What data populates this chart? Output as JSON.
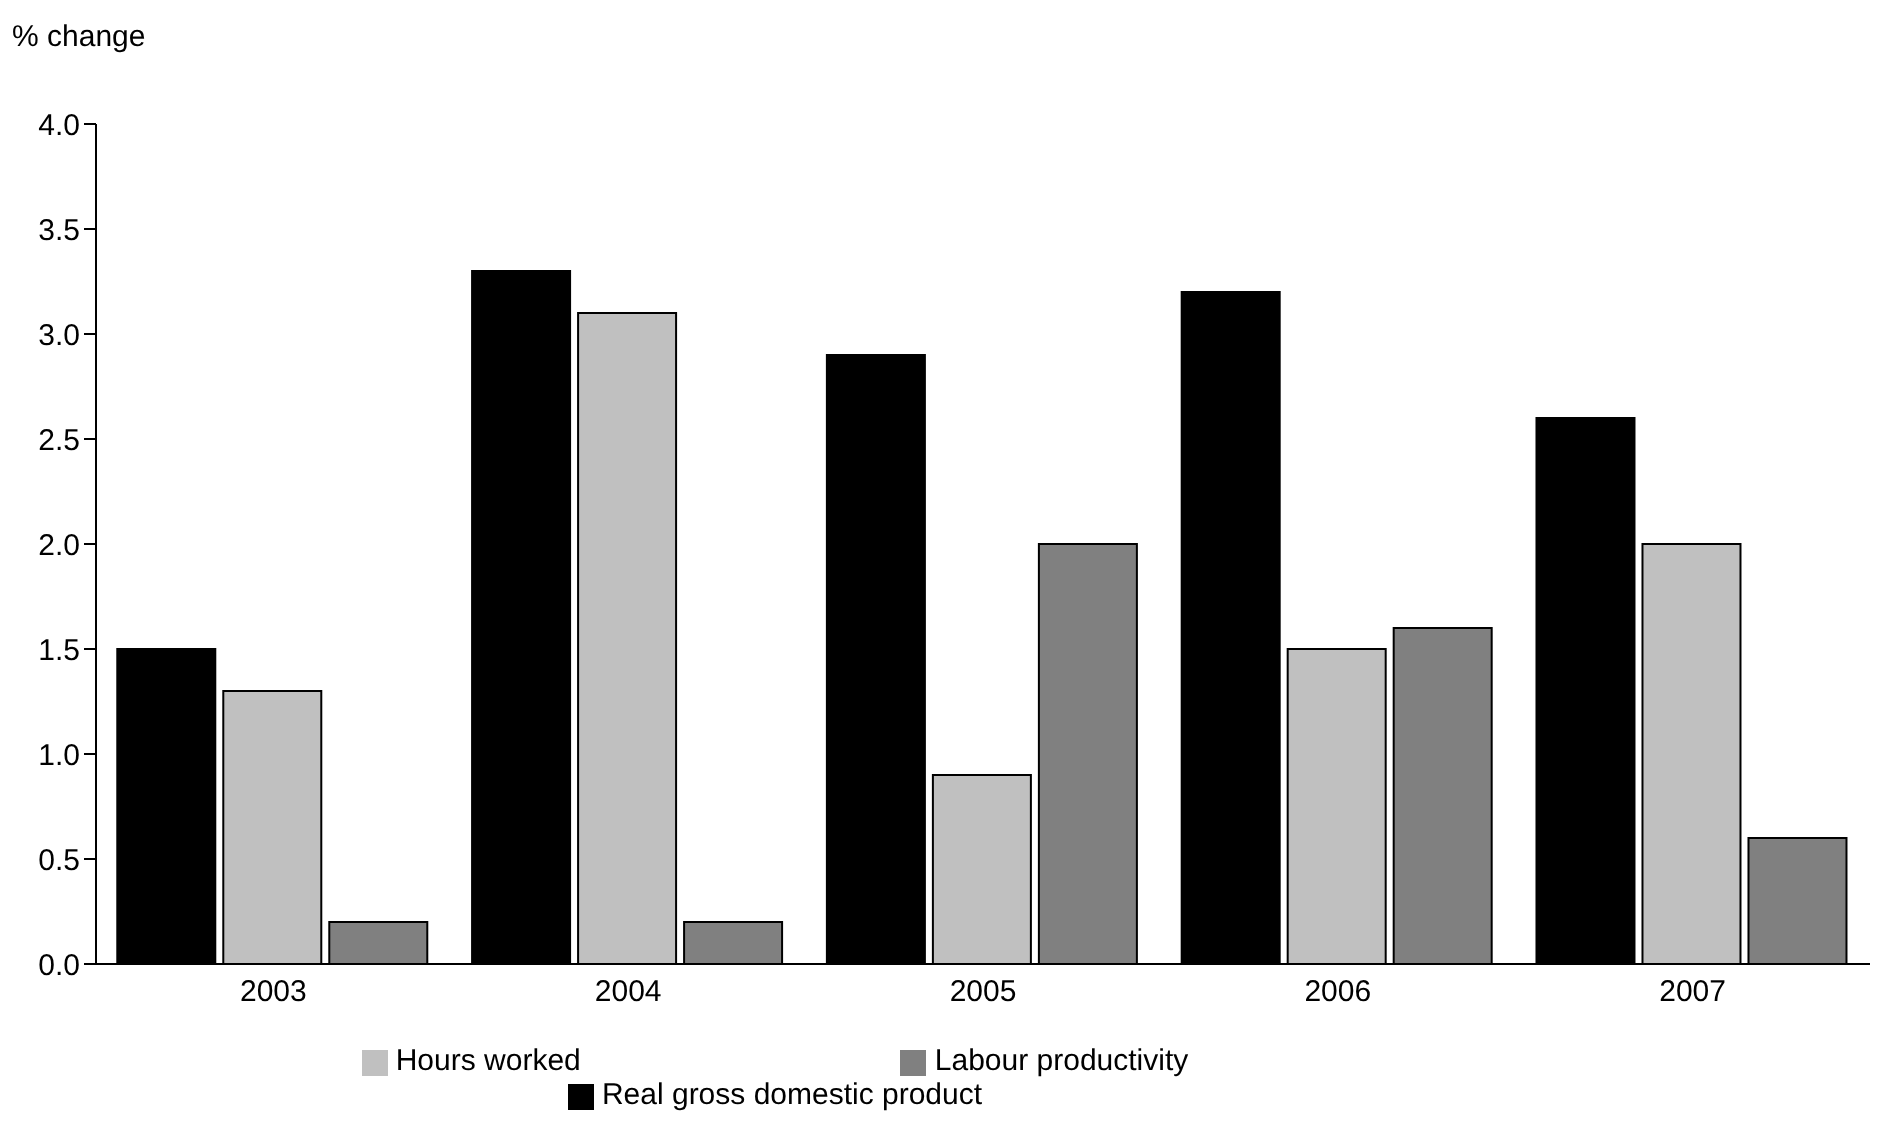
{
  "chart_data": {
    "type": "bar",
    "ylabel": "% change",
    "categories": [
      "2003",
      "2004",
      "2005",
      "2006",
      "2007"
    ],
    "series": [
      {
        "name": "Real gross domestic product",
        "color": "#000000",
        "values": [
          1.5,
          3.3,
          2.9,
          3.2,
          2.6
        ]
      },
      {
        "name": "Hours worked",
        "color": "#c0c0c0",
        "values": [
          1.3,
          3.1,
          0.9,
          1.5,
          2.0
        ]
      },
      {
        "name": "Labour productivity",
        "color": "#808080",
        "values": [
          0.2,
          0.2,
          2.0,
          1.6,
          0.6
        ]
      }
    ],
    "ylim": [
      0,
      4
    ],
    "yticks": [
      {
        "value": 0,
        "label": "0.0"
      },
      {
        "value": 0.5,
        "label": "0.5"
      },
      {
        "value": 1,
        "label": "1.0"
      },
      {
        "value": 1.5,
        "label": "1.5"
      },
      {
        "value": 2,
        "label": "2.0"
      },
      {
        "value": 2.5,
        "label": "2.5"
      },
      {
        "value": 3,
        "label": "3.0"
      },
      {
        "value": 3.5,
        "label": "3.5"
      },
      {
        "value": 4,
        "label": "4.0"
      }
    ],
    "grid": false,
    "legend": "bottom"
  }
}
